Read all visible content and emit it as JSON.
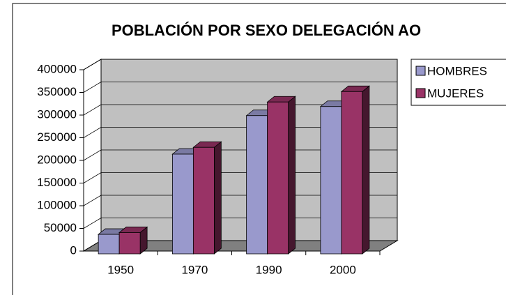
{
  "chart_data": {
    "type": "bar3d",
    "title": "POBLACIÓN POR SEXO DELEGACIÓN AO",
    "categories": [
      "1950",
      "1970",
      "1990",
      "2000"
    ],
    "series": [
      {
        "name": "HOMBRES",
        "color": "#9999cc",
        "values": [
          43000,
          220000,
          305000,
          325000
        ]
      },
      {
        "name": "MUJERES",
        "color": "#993366",
        "values": [
          47000,
          235000,
          335000,
          358000
        ]
      }
    ],
    "ylim": [
      0,
      400000
    ],
    "yticks": [
      0,
      50000,
      100000,
      150000,
      200000,
      250000,
      300000,
      350000,
      400000
    ],
    "grid": true,
    "legend": "right"
  }
}
